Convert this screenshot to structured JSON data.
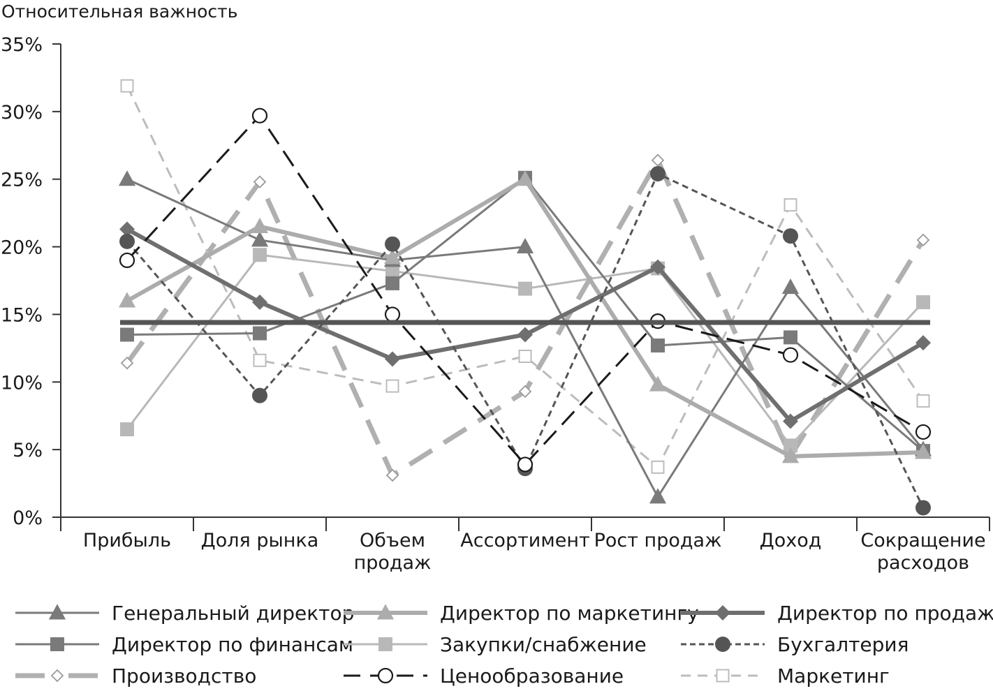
{
  "chart_data": {
    "type": "line",
    "ylabel": "Относительная важность",
    "ylim": [
      0,
      35
    ],
    "yticks": [
      "0%",
      "5%",
      "10%",
      "15%",
      "20%",
      "25%",
      "30%",
      "35%"
    ],
    "categories": [
      [
        "Прибыль"
      ],
      [
        "Доля рынка"
      ],
      [
        "Объем",
        "продаж"
      ],
      [
        "Ассортимент"
      ],
      [
        "Рост продаж"
      ],
      [
        "Доход"
      ],
      [
        "Сокращение",
        "расходов"
      ]
    ],
    "grid": false,
    "legend_position": "bottom",
    "reference_line": {
      "value": 14.4,
      "color": "#555555"
    },
    "series": [
      {
        "name": "Генеральный директор",
        "color": "#7a7a7a",
        "marker": "triangle",
        "dash": "solid",
        "values": [
          25.0,
          20.5,
          19.0,
          20.0,
          1.5,
          17.0,
          5.0
        ]
      },
      {
        "name": "Директор по маркетингу",
        "color": "#acacac",
        "marker": "triangle",
        "dash": "solid",
        "values": [
          16.0,
          21.5,
          19.2,
          25.0,
          9.8,
          4.5,
          4.8
        ]
      },
      {
        "name": "Директор по продажам",
        "color": "#6f6f6f",
        "marker": "diamond",
        "dash": "solid",
        "values": [
          21.3,
          15.9,
          11.7,
          13.5,
          18.5,
          7.1,
          12.9
        ]
      },
      {
        "name": "Директор по финансам",
        "color": "#7a7a7a",
        "marker": "square",
        "dash": "solid",
        "values": [
          13.5,
          13.6,
          17.3,
          25.1,
          12.7,
          13.3,
          4.9
        ]
      },
      {
        "name": "Закупки/снабжение",
        "color": "#b8b8b8",
        "marker": "square",
        "dash": "solid",
        "values": [
          6.5,
          19.4,
          18.2,
          16.9,
          18.4,
          5.3,
          15.9
        ]
      },
      {
        "name": "Бухгалтерия",
        "color": "#555555",
        "marker": "circle-filled",
        "dash": "dashed-short",
        "values": [
          20.4,
          9.0,
          20.2,
          3.6,
          25.4,
          20.8,
          0.7
        ]
      },
      {
        "name": "Производство",
        "color": "#b0b0b0",
        "marker": "diamond-open",
        "dash": "dashed-long",
        "values": [
          11.4,
          24.8,
          3.1,
          9.3,
          26.4,
          4.5,
          20.5
        ]
      },
      {
        "name": "Ценообразование",
        "color": "#1a1a1a",
        "marker": "circle-open",
        "dash": "dashed-long",
        "values": [
          19.0,
          29.7,
          15.0,
          3.9,
          14.5,
          12.0,
          6.3
        ]
      },
      {
        "name": "Маркетинг",
        "color": "#bcbcbc",
        "marker": "square-open",
        "dash": "dashed-medium",
        "values": [
          31.9,
          11.6,
          9.7,
          11.9,
          3.7,
          23.1,
          8.6
        ]
      }
    ]
  }
}
